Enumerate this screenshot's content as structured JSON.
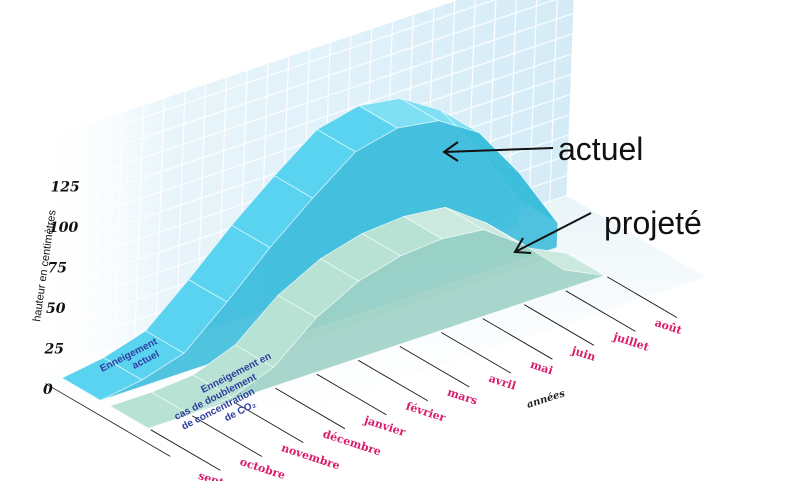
{
  "chart_data": {
    "type": "area",
    "ylabel": "hauteur en centimètres",
    "xlabel": "années",
    "yticks": [
      "0",
      "25",
      "50",
      "75",
      "100",
      "125"
    ],
    "ylim": [
      0,
      125
    ],
    "categories": [
      "septembre",
      "octobre",
      "novembre",
      "décembre",
      "janvier",
      "février",
      "mars",
      "avril",
      "mai",
      "juin",
      "juillet",
      "août"
    ],
    "series": [
      {
        "name": "Enneigement actuel",
        "name_lines": [
          "Enneigement",
          "actuel"
        ],
        "color": "#39c3e0",
        "values": [
          0,
          4,
          12,
          35,
          60,
          82,
          102,
          108,
          104,
          88,
          55,
          15
        ]
      },
      {
        "name": "Enneigement en cas de doublement de concentration de CO2",
        "name_lines": [
          "Enneigement en",
          "cas de doublement",
          "de concentration",
          "de CO₂"
        ],
        "color": "#a7d9c9",
        "values": [
          0,
          0,
          2,
          12,
          34,
          48,
          55,
          57,
          54,
          36,
          12,
          0
        ]
      }
    ],
    "grid": true
  },
  "annotations": {
    "actuel": "actuel",
    "projete": "projeté"
  }
}
